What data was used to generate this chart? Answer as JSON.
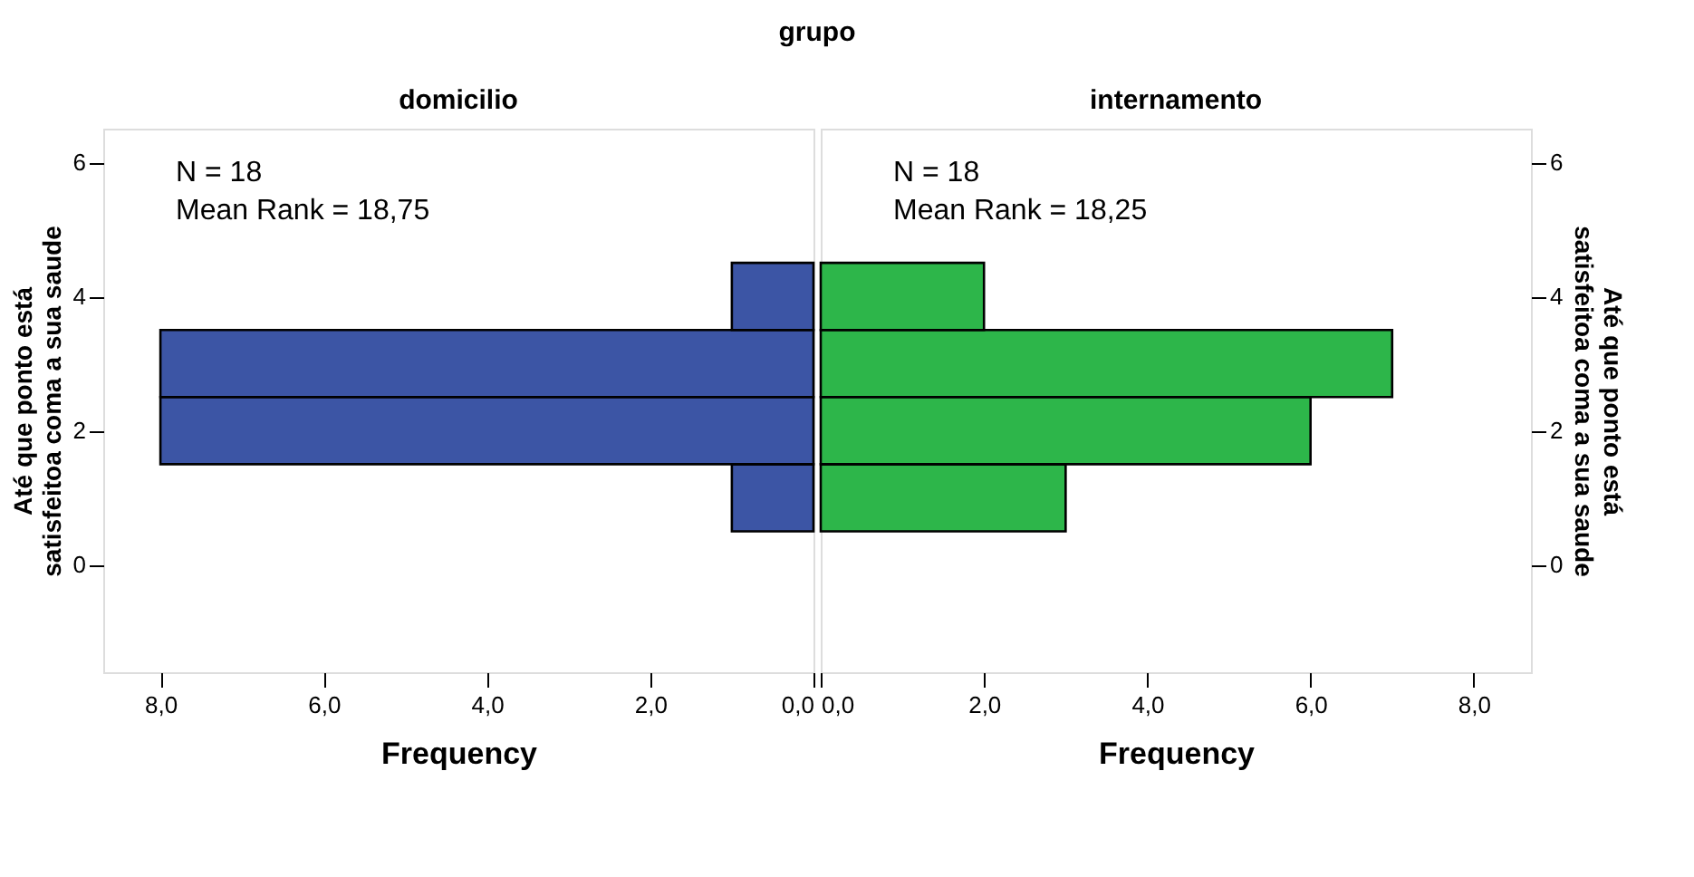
{
  "chart_data": [
    {
      "type": "histogram",
      "orientation": "horizontal",
      "title": "domicilio",
      "annotations": [
        "grupo",
        "N = 18",
        "Mean Rank = 18,75"
      ],
      "xlabel": "Frequency",
      "ylabel": "Até que ponto está satisfeitoa coma a sua saude",
      "bins": [
        0.5,
        1.5,
        2.5,
        3.5,
        4.5
      ],
      "values": [
        1,
        8,
        8,
        1
      ],
      "color": "#3c55a5",
      "xlim": [
        8.7,
        0
      ],
      "xticks": [
        {
          "value": 8,
          "label": "8,0"
        },
        {
          "value": 6,
          "label": "6,0"
        },
        {
          "value": 4,
          "label": "4,0"
        },
        {
          "value": 2,
          "label": "2,0"
        },
        {
          "value": 0,
          "label": "0,0"
        }
      ],
      "ylim": [
        -1.6,
        6.5
      ],
      "yticks": [
        0,
        2,
        4,
        6
      ],
      "grid": false,
      "legend": false
    },
    {
      "type": "histogram",
      "orientation": "horizontal",
      "title": "internamento",
      "annotations": [
        "N = 18",
        "Mean Rank = 18,25"
      ],
      "xlabel": "Frequency",
      "ylabel": "Até que ponto está satisfeitoa coma a sua saude",
      "bins": [
        0.5,
        1.5,
        2.5,
        3.5,
        4.5
      ],
      "values": [
        3,
        6,
        7,
        2
      ],
      "color": "#2db64a",
      "xlim": [
        0,
        8.7
      ],
      "xticks": [
        {
          "value": 0,
          "label": "0,0"
        },
        {
          "value": 2,
          "label": "2,0"
        },
        {
          "value": 4,
          "label": "4,0"
        },
        {
          "value": 6,
          "label": "6,0"
        },
        {
          "value": 8,
          "label": "8,0"
        }
      ],
      "ylim": [
        -1.6,
        6.5
      ],
      "yticks": [
        0,
        2,
        4,
        6
      ],
      "grid": false,
      "legend": false
    }
  ]
}
